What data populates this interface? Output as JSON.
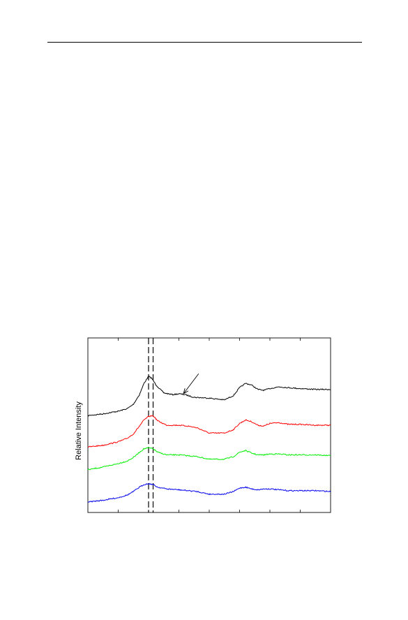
{
  "chart_data": {
    "type": "line",
    "title": "",
    "xlabel": "",
    "ylabel": "Relative Intensity",
    "xlim": [
      0,
      8
    ],
    "ylim": [
      0,
      10
    ],
    "x_tick_count": 9,
    "grid": false,
    "legend": "none",
    "reference_lines": [
      {
        "x": 2.0,
        "style": "dashed",
        "color": "#000000"
      },
      {
        "x": 2.15,
        "style": "dashed",
        "color": "#000000"
      }
    ],
    "annotations": [
      {
        "type": "arrow",
        "from": [
          3.65,
          7.95
        ],
        "to": [
          3.15,
          6.8
        ]
      }
    ],
    "series": [
      {
        "color": "#000000",
        "x": [
          0,
          0.5,
          1.0,
          1.3,
          1.5,
          1.7,
          1.85,
          2.0,
          2.1,
          2.25,
          2.5,
          2.8,
          3.0,
          3.2,
          3.5,
          4.0,
          4.5,
          4.8,
          5.0,
          5.2,
          5.4,
          5.6,
          5.8,
          6.0,
          6.3,
          6.6,
          7.0,
          7.5,
          8.0
        ],
        "y": [
          5.55,
          5.65,
          5.8,
          5.95,
          6.2,
          6.75,
          7.4,
          7.8,
          7.7,
          7.3,
          6.85,
          6.75,
          6.8,
          6.75,
          6.6,
          6.55,
          6.45,
          6.7,
          7.15,
          7.4,
          7.3,
          7.05,
          7.0,
          7.1,
          7.2,
          7.15,
          7.1,
          7.05,
          7.05
        ]
      },
      {
        "color": "#ff0000",
        "x": [
          0,
          0.5,
          1.0,
          1.3,
          1.5,
          1.7,
          1.85,
          2.0,
          2.15,
          2.3,
          2.6,
          3.0,
          3.3,
          3.6,
          4.0,
          4.5,
          4.8,
          5.0,
          5.2,
          5.4,
          5.6,
          5.8,
          6.0,
          6.3,
          6.6,
          7.0,
          7.5,
          8.0
        ],
        "y": [
          3.75,
          3.85,
          4.05,
          4.25,
          4.5,
          4.95,
          5.3,
          5.5,
          5.55,
          5.25,
          5.0,
          5.0,
          4.95,
          4.85,
          4.55,
          4.55,
          4.75,
          5.1,
          5.3,
          5.2,
          5.0,
          4.95,
          5.1,
          5.15,
          5.05,
          5.05,
          5.0,
          5.0
        ]
      },
      {
        "color": "#00ee00",
        "x": [
          0,
          0.5,
          1.0,
          1.3,
          1.5,
          1.7,
          1.85,
          2.0,
          2.15,
          2.3,
          2.6,
          3.0,
          3.3,
          3.6,
          4.0,
          4.5,
          4.8,
          5.0,
          5.2,
          5.4,
          5.6,
          5.8,
          6.0,
          6.3,
          6.6,
          7.0,
          7.5,
          8.0
        ],
        "y": [
          2.45,
          2.6,
          2.8,
          2.95,
          3.15,
          3.45,
          3.65,
          3.7,
          3.65,
          3.45,
          3.3,
          3.3,
          3.25,
          3.2,
          3.05,
          3.05,
          3.2,
          3.45,
          3.55,
          3.4,
          3.3,
          3.3,
          3.35,
          3.35,
          3.3,
          3.3,
          3.3,
          3.25
        ]
      },
      {
        "color": "#0000ee",
        "x": [
          0,
          0.5,
          1.0,
          1.3,
          1.5,
          1.7,
          1.85,
          2.0,
          2.15,
          2.3,
          2.6,
          3.0,
          3.3,
          3.6,
          4.0,
          4.5,
          4.8,
          5.0,
          5.2,
          5.4,
          5.6,
          5.8,
          6.0,
          6.3,
          6.6,
          7.0,
          7.5,
          8.0
        ],
        "y": [
          0.6,
          0.7,
          0.85,
          1.0,
          1.2,
          1.45,
          1.6,
          1.65,
          1.6,
          1.45,
          1.35,
          1.3,
          1.25,
          1.2,
          1.05,
          1.05,
          1.2,
          1.4,
          1.45,
          1.35,
          1.3,
          1.35,
          1.35,
          1.3,
          1.25,
          1.25,
          1.25,
          1.2
        ]
      }
    ]
  }
}
